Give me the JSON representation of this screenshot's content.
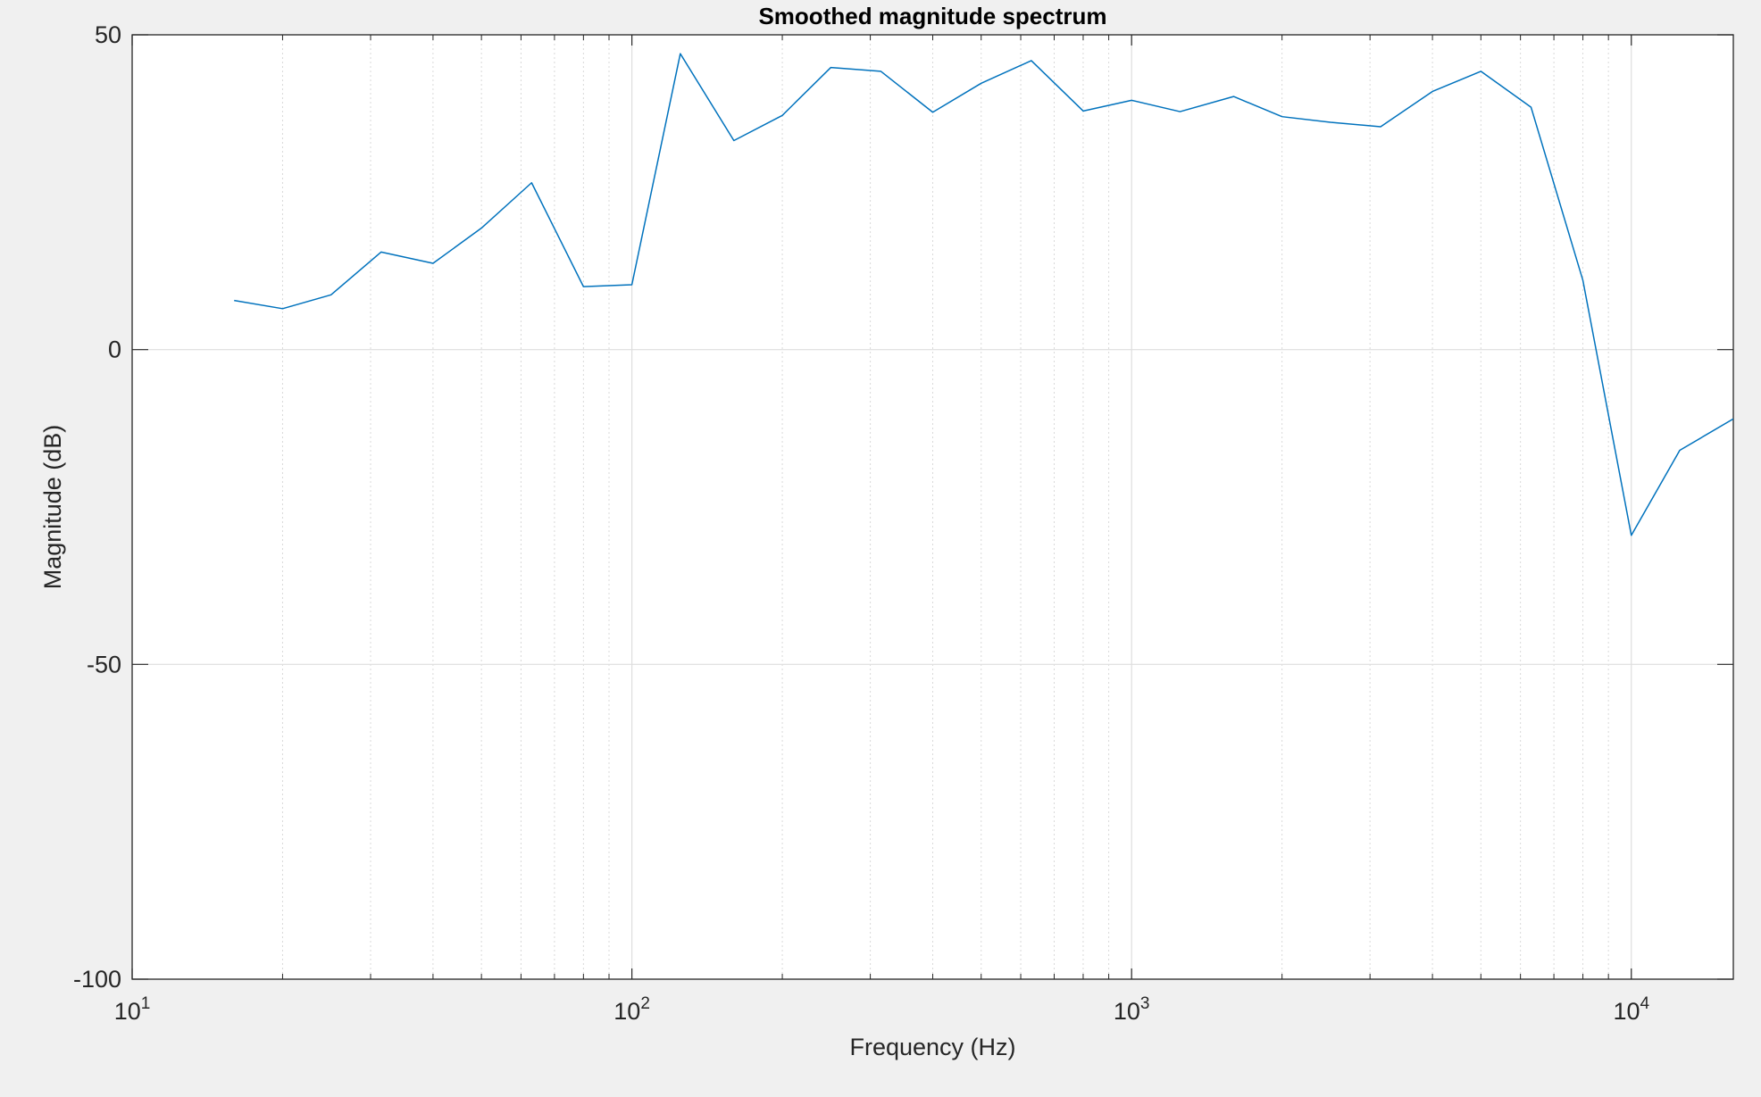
{
  "chart_data": {
    "type": "line",
    "title": "Smoothed magnitude spectrum",
    "xlabel": "Frequency (Hz)",
    "ylabel": "Magnitude (dB)",
    "x_scale": "log",
    "xlim": [
      10,
      16000
    ],
    "ylim": [
      -100,
      50
    ],
    "grid": true,
    "x_ticks": [
      {
        "value": 10,
        "base": "10",
        "exp": "1"
      },
      {
        "value": 100,
        "base": "10",
        "exp": "2"
      },
      {
        "value": 1000,
        "base": "10",
        "exp": "3"
      },
      {
        "value": 10000,
        "base": "10",
        "exp": "4"
      }
    ],
    "y_ticks": [
      {
        "value": 50,
        "label": "50"
      },
      {
        "value": 0,
        "label": "0"
      },
      {
        "value": -50,
        "label": "-50"
      },
      {
        "value": -100,
        "label": "-100"
      }
    ],
    "line_color": "#0072BD",
    "series": [
      {
        "x": [
          16,
          20,
          25,
          31.5,
          40,
          50,
          63,
          80,
          100,
          125,
          160,
          200,
          250,
          315,
          400,
          500,
          630,
          800,
          1000,
          1250,
          1600,
          2000,
          2500,
          3150,
          4000,
          5000,
          6300,
          8000,
          10000,
          12500,
          16000
        ],
        "values": [
          7.8,
          6.5,
          8.7,
          15.5,
          13.7,
          19.3,
          26.5,
          10.0,
          10.3,
          47.0,
          33.2,
          37.2,
          44.8,
          44.2,
          37.7,
          42.3,
          45.9,
          37.9,
          39.6,
          37.8,
          40.2,
          37.0,
          36.1,
          35.4,
          41.0,
          44.2,
          38.5,
          11.0,
          -29.5,
          -16.0,
          -11.0
        ]
      }
    ]
  }
}
